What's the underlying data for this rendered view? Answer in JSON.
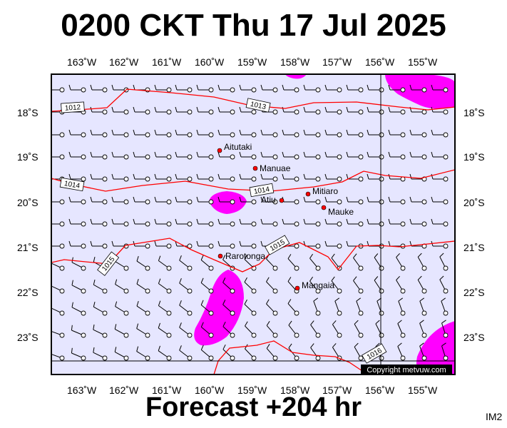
{
  "title": "0200 CKT Thu 17 Jul 2025",
  "footer": "Forecast +204 hr",
  "image_code": "IM2",
  "copyright": "Copyright metvuw.com",
  "colors": {
    "sea": "#e6e6ff",
    "rain": "#ff00ff",
    "isobar": "#ff0000",
    "place_dot": "#ff0000"
  },
  "longitude_labels": [
    "163˚W",
    "162˚W",
    "161˚W",
    "160˚W",
    "159˚W",
    "158˚W",
    "157˚W",
    "156˚W",
    "155˚W"
  ],
  "latitude_labels": [
    "18˚S",
    "19˚S",
    "20˚S",
    "21˚S",
    "22˚S",
    "23˚S"
  ],
  "places": [
    {
      "name": "Aitutaki"
    },
    {
      "name": "Manuae"
    },
    {
      "name": "Mitiaro"
    },
    {
      "name": "Atiu"
    },
    {
      "name": "Mauke"
    },
    {
      "name": "Rarotonga"
    },
    {
      "name": "Mangaia"
    }
  ],
  "isobars": [
    {
      "label": "1012"
    },
    {
      "label": "1013"
    },
    {
      "label": "1014"
    },
    {
      "label": "1014"
    },
    {
      "label": "1015"
    },
    {
      "label": "1015"
    },
    {
      "label": "1016"
    }
  ]
}
